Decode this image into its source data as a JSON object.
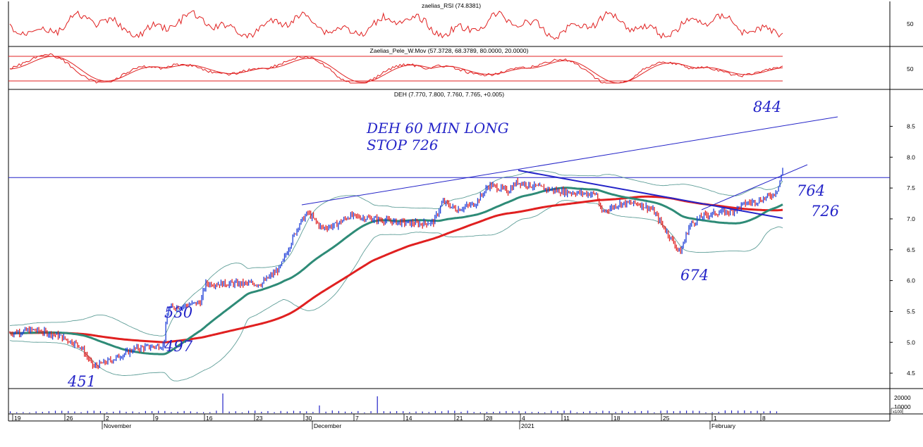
{
  "chart_data": {
    "type": "candlestick-with-indicators",
    "panels": {
      "rsi": {
        "title": "zaelias_RSI (74.8381)",
        "axis_label": "50",
        "color": "#e02020"
      },
      "pele": {
        "title": "Zaelias_Pele_W.Mov (57.3728, 68.3789, 80.0000, 20.0000)",
        "axis_label": "50",
        "levels": [
          80,
          20
        ],
        "color": "#e02020"
      },
      "price": {
        "title": "DEH (7.770, 7.800, 7.760, 7.765, +0.005)",
        "yticks": [
          "8.5",
          "8.0",
          "7.5",
          "7.0",
          "6.5",
          "6.0",
          "5.5",
          "5.0",
          "4.5"
        ],
        "ylim": [
          4.25,
          8.95
        ],
        "horizontal_level": 7.67,
        "up_color": "#1f3fd8",
        "down_color": "#e02020",
        "ma_fast_color": "#2e8b77",
        "ma_slow_color": "#e02020",
        "band_color": "#5f9e98",
        "close_series": [
          {
            "x": 0,
            "y": 5.15
          },
          {
            "x": 5,
            "y": 5.2
          },
          {
            "x": 10,
            "y": 5.12
          },
          {
            "x": 15,
            "y": 4.95
          },
          {
            "x": 18,
            "y": 4.6
          },
          {
            "x": 22,
            "y": 4.72
          },
          {
            "x": 27,
            "y": 4.9
          },
          {
            "x": 33,
            "y": 4.95
          },
          {
            "x": 34,
            "y": 5.55
          },
          {
            "x": 38,
            "y": 5.6
          },
          {
            "x": 41,
            "y": 5.65
          },
          {
            "x": 42,
            "y": 5.95
          },
          {
            "x": 46,
            "y": 5.95
          },
          {
            "x": 54,
            "y": 5.95
          },
          {
            "x": 58,
            "y": 6.2
          },
          {
            "x": 62,
            "y": 6.9
          },
          {
            "x": 64,
            "y": 7.1
          },
          {
            "x": 67,
            "y": 6.85
          },
          {
            "x": 70,
            "y": 6.9
          },
          {
            "x": 73,
            "y": 7.05
          },
          {
            "x": 78,
            "y": 7.0
          },
          {
            "x": 83,
            "y": 6.95
          },
          {
            "x": 88,
            "y": 6.92
          },
          {
            "x": 91,
            "y": 6.95
          },
          {
            "x": 93,
            "y": 7.28
          },
          {
            "x": 96,
            "y": 7.15
          },
          {
            "x": 100,
            "y": 7.25
          },
          {
            "x": 103,
            "y": 7.55
          },
          {
            "x": 107,
            "y": 7.45
          },
          {
            "x": 109,
            "y": 7.6
          },
          {
            "x": 114,
            "y": 7.5
          },
          {
            "x": 118,
            "y": 7.45
          },
          {
            "x": 122,
            "y": 7.42
          },
          {
            "x": 126,
            "y": 7.4
          },
          {
            "x": 127,
            "y": 7.1
          },
          {
            "x": 131,
            "y": 7.25
          },
          {
            "x": 135,
            "y": 7.25
          },
          {
            "x": 138,
            "y": 7.15
          },
          {
            "x": 141,
            "y": 6.8
          },
          {
            "x": 144,
            "y": 6.45
          },
          {
            "x": 146,
            "y": 6.9
          },
          {
            "x": 149,
            "y": 7.05
          },
          {
            "x": 152,
            "y": 7.1
          },
          {
            "x": 155,
            "y": 7.12
          },
          {
            "x": 158,
            "y": 7.25
          },
          {
            "x": 161,
            "y": 7.3
          },
          {
            "x": 164,
            "y": 7.4
          },
          {
            "x": 165,
            "y": 7.5
          },
          {
            "x": 166,
            "y": 7.78
          }
        ]
      }
    },
    "x_axis": {
      "tick_labels": [
        "19",
        "26",
        "2",
        "9",
        "16",
        "23",
        "30",
        "7",
        "14",
        "21",
        "28",
        "4",
        "11",
        "18",
        "25",
        "1",
        "8"
      ],
      "month_labels": [
        "November",
        "December",
        "2021",
        "February"
      ]
    },
    "volume": {
      "axis_labels": [
        "20000",
        "10000"
      ],
      "unit_label": "x100"
    },
    "annotations": [
      {
        "text": "DEH 60 MIN LONG"
      },
      {
        "text": "STOP 726"
      },
      {
        "text": "844"
      },
      {
        "text": "764"
      },
      {
        "text": "726"
      },
      {
        "text": "674"
      },
      {
        "text": "530"
      },
      {
        "text": "497"
      },
      {
        "text": "451"
      }
    ],
    "line_color": "#2424c8"
  }
}
